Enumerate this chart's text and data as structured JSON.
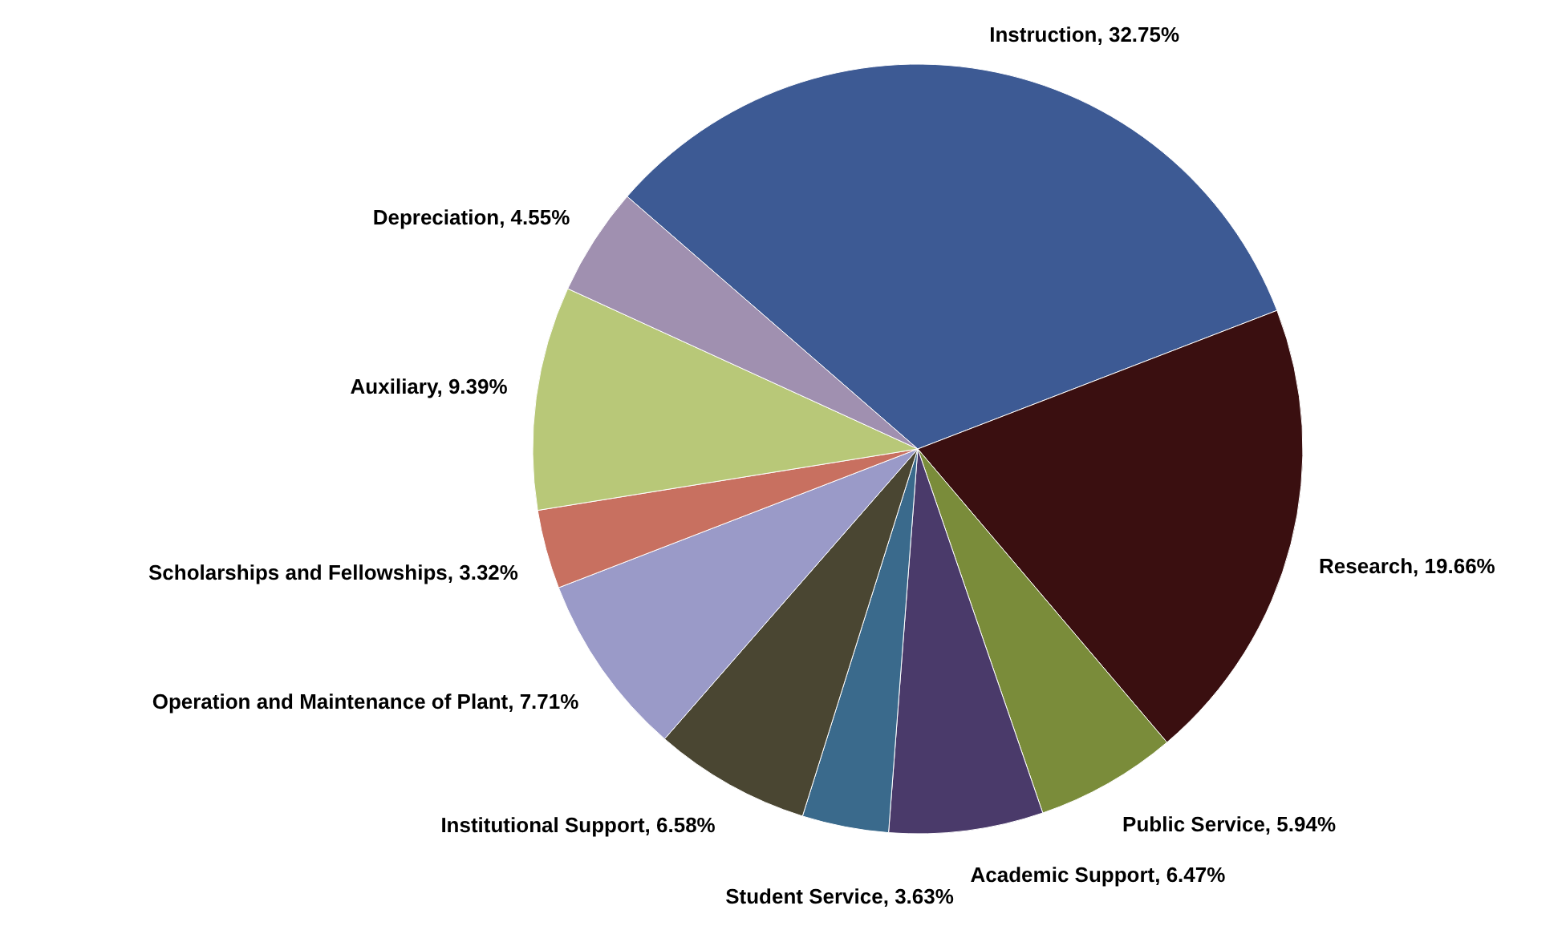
{
  "chart_data": {
    "type": "pie",
    "categories": [
      "Instruction",
      "Research",
      "Public Service",
      "Academic Support",
      "Student Service",
      "Institutional Support",
      "Operation and Maintenance of Plant",
      "Scholarships and Fellowships",
      "Auxiliary",
      "Depreciation"
    ],
    "values": [
      32.75,
      19.66,
      5.94,
      6.47,
      3.63,
      6.58,
      7.71,
      3.32,
      9.39,
      4.55
    ],
    "colors": [
      "#3d5a94",
      "#3a0f10",
      "#7a8c3a",
      "#4a3a6a",
      "#3a6a8c",
      "#4a4632",
      "#9a9ac8",
      "#c87060",
      "#b8c878",
      "#a090b0"
    ],
    "value_labels": [
      "32.75%",
      "19.66%",
      "5.94%",
      "6.47%",
      "3.63%",
      "6.58%",
      "7.71%",
      "3.32%",
      "9.39%",
      "4.55%"
    ]
  }
}
